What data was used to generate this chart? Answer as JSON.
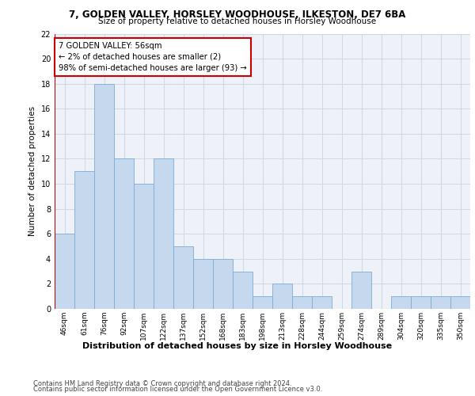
{
  "title1": "7, GOLDEN VALLEY, HORSLEY WOODHOUSE, ILKESTON, DE7 6BA",
  "title2": "Size of property relative to detached houses in Horsley Woodhouse",
  "xlabel": "Distribution of detached houses by size in Horsley Woodhouse",
  "ylabel": "Number of detached properties",
  "categories": [
    "46sqm",
    "61sqm",
    "76sqm",
    "92sqm",
    "107sqm",
    "122sqm",
    "137sqm",
    "152sqm",
    "168sqm",
    "183sqm",
    "198sqm",
    "213sqm",
    "228sqm",
    "244sqm",
    "259sqm",
    "274sqm",
    "289sqm",
    "304sqm",
    "320sqm",
    "335sqm",
    "350sqm"
  ],
  "values": [
    6,
    11,
    18,
    12,
    10,
    12,
    5,
    4,
    4,
    3,
    1,
    2,
    1,
    1,
    0,
    3,
    0,
    1,
    1,
    1,
    1
  ],
  "bar_color": "#c5d8ed",
  "bar_edge_color": "#7aadd4",
  "highlight_line_color": "#cc0000",
  "annotation_text": "7 GOLDEN VALLEY: 56sqm\n← 2% of detached houses are smaller (2)\n98% of semi-detached houses are larger (93) →",
  "annotation_box_color": "#ffffff",
  "annotation_box_edge": "#cc0000",
  "ylim": [
    0,
    22
  ],
  "yticks": [
    0,
    2,
    4,
    6,
    8,
    10,
    12,
    14,
    16,
    18,
    20,
    22
  ],
  "grid_color": "#d0d8e8",
  "background_color": "#eef2f8",
  "footer1": "Contains HM Land Registry data © Crown copyright and database right 2024.",
  "footer2": "Contains public sector information licensed under the Open Government Licence v3.0."
}
